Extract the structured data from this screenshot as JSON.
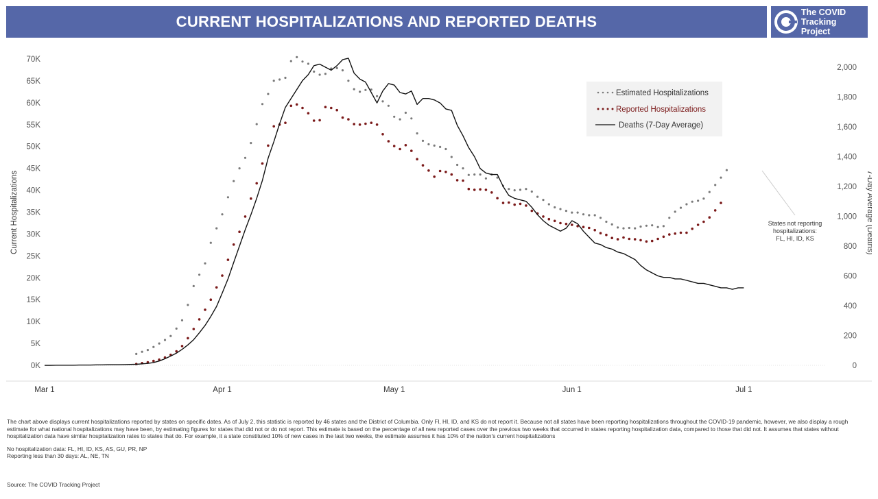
{
  "header": {
    "title": "CURRENT HOSPITALIZATIONS AND REPORTED DEATHS",
    "logo_line1": "The COVID",
    "logo_line2": "Tracking Project"
  },
  "chart_data": {
    "type": "line",
    "title": "CURRENT HOSPITALIZATIONS AND REPORTED DEATHS",
    "ylabel": "Current Hospitalizations",
    "y2label": "7-Day Average (Deaths)",
    "ylim": [
      0,
      70000
    ],
    "y2lim": [
      0,
      2000
    ],
    "y_ticks": [
      "0K",
      "5K",
      "10K",
      "15K",
      "20K",
      "25K",
      "30K",
      "35K",
      "40K",
      "45K",
      "50K",
      "55K",
      "60K",
      "65K",
      "70K"
    ],
    "y2_ticks": [
      "0",
      "200",
      "400",
      "600",
      "800",
      "1,000",
      "1,200",
      "1,400",
      "1,600",
      "1,800",
      "2,000"
    ],
    "x_ticks": [
      {
        "label": "Mar 1",
        "day": 0
      },
      {
        "label": "Apr 1",
        "day": 31
      },
      {
        "label": "May 1",
        "day": 61
      },
      {
        "label": "Jun 1",
        "day": 92
      },
      {
        "label": "Jul 1",
        "day": 122
      }
    ],
    "legend_position": "top-right",
    "grid": false,
    "annotation": {
      "lines": [
        "States not reporting",
        "hospitalizations:",
        "FL, HI, ID, KS"
      ],
      "target_series": "Estimated Hospitalizations"
    },
    "x_start_date": "2020-03-01",
    "series": [
      {
        "name": "Estimated Hospitalizations",
        "style": "dotted",
        "color": "#7a7a7a",
        "axis": "left",
        "start_day": 16,
        "values": [
          2600,
          3100,
          3500,
          4200,
          5000,
          5800,
          6700,
          8400,
          10300,
          13800,
          18100,
          20700,
          23300,
          28000,
          31300,
          34500,
          38400,
          42100,
          45000,
          47400,
          50800,
          55100,
          59700,
          62000,
          65000,
          65300,
          65700,
          69500,
          70400,
          69400,
          68900,
          67100,
          66400,
          66600,
          67800,
          67900,
          67400,
          65000,
          63100,
          62500,
          62900,
          63000,
          61500,
          60300,
          59300,
          56800,
          56200,
          57700,
          56400,
          53000,
          51300,
          50500,
          50200,
          49900,
          49400,
          47600,
          45800,
          45000,
          43500,
          43600,
          43600,
          42700,
          43600,
          42900,
          41000,
          40300,
          40000,
          40100,
          40300,
          39700,
          38500,
          37800,
          36800,
          36100,
          35700,
          35300,
          34900,
          34900,
          34500,
          34300,
          34300,
          33700,
          32800,
          32200,
          31500,
          31300,
          31400,
          31300,
          31700,
          31900,
          32000,
          31600,
          31800,
          33700,
          35100,
          36000,
          36800,
          37400,
          37600,
          38100,
          39600,
          41200,
          42900,
          44600
        ]
      },
      {
        "name": "Reported Hospitalizations",
        "style": "dotted",
        "color": "#7b1a1a",
        "axis": "left",
        "start_day": 16,
        "values": [
          300,
          500,
          700,
          1000,
          1300,
          1800,
          2400,
          3200,
          4400,
          6200,
          8300,
          10500,
          12700,
          15000,
          17800,
          20500,
          24100,
          27600,
          30500,
          34000,
          38100,
          41600,
          46100,
          50200,
          54600,
          55000,
          55400,
          59300,
          59600,
          58800,
          57600,
          55900,
          56000,
          59000,
          58800,
          58300,
          56600,
          56200,
          55100,
          55000,
          55200,
          55400,
          55000,
          52800,
          51200,
          50100,
          49400,
          50300,
          49000,
          47100,
          45700,
          44500,
          43100,
          44400,
          44200,
          43600,
          42300,
          42200,
          40300,
          40100,
          40200,
          40100,
          39500,
          38200,
          37100,
          37200,
          36700,
          36900,
          36500,
          35300,
          34700,
          34000,
          33400,
          33000,
          32500,
          32300,
          32100,
          31800,
          31600,
          31400,
          30900,
          30200,
          29800,
          29100,
          28800,
          29200,
          28900,
          28800,
          28600,
          28300,
          28400,
          28900,
          29400,
          29900,
          30100,
          30300,
          30300,
          31200,
          32100,
          32800,
          33800,
          35400,
          37100
        ]
      },
      {
        "name": "Deaths (7-Day Average)",
        "style": "solid",
        "color": "#111111",
        "axis": "right",
        "start_day": 0,
        "values": [
          0,
          0,
          1,
          1,
          1,
          1,
          2,
          2,
          2,
          3,
          3,
          4,
          4,
          4,
          5,
          6,
          7,
          10,
          13,
          19,
          29,
          44,
          62,
          82,
          107,
          137,
          172,
          218,
          268,
          328,
          395,
          485,
          580,
          690,
          800,
          910,
          1010,
          1120,
          1240,
          1390,
          1500,
          1620,
          1730,
          1790,
          1850,
          1910,
          1950,
          2010,
          2020,
          2000,
          1980,
          2010,
          2050,
          2060,
          1960,
          1920,
          1900,
          1830,
          1760,
          1840,
          1890,
          1880,
          1830,
          1820,
          1840,
          1750,
          1790,
          1790,
          1780,
          1760,
          1720,
          1710,
          1610,
          1540,
          1460,
          1400,
          1320,
          1290,
          1280,
          1280,
          1200,
          1140,
          1120,
          1110,
          1100,
          1060,
          1010,
          970,
          940,
          920,
          900,
          920,
          970,
          950,
          900,
          860,
          820,
          810,
          790,
          780,
          760,
          750,
          730,
          710,
          670,
          640,
          620,
          600,
          590,
          590,
          580,
          580,
          570,
          560,
          550,
          550,
          540,
          530,
          520,
          520,
          510,
          520,
          520
        ]
      }
    ]
  },
  "notes": {
    "paragraph": "The chart above displays current hospitalizations reported by states on specific dates. As of July 2, this statistic is reported by 46 states and the District of Columbia. Only Fl, HI, ID, and KS do not report it. Because not all states have been reporting hospitalizations throughout the COVID-19 pandemic, however, we also display a rough estimate for what national hospitalizations may have been, by estimating figures for states that did not or do not report. This estimate is based on the percentage of all new reported cases over the previous two weeks that occurred in states reporting hospitalization data, compared to those that did not. It assumes that states without hospitalization data have similar hospitalization rates to states that do. For example, it a state constituted 10% of new cases in the last two weeks, the estimate assumes it has 10% of the nation's current hospitalizations",
    "no_data": "No hospitalization data: FL, HI, ID, KS, AS, GU, PR, NP",
    "short_reporting": "Reporting less than 30 days: AL, NE, TN",
    "source": "Source: The COVID Tracking Project"
  }
}
